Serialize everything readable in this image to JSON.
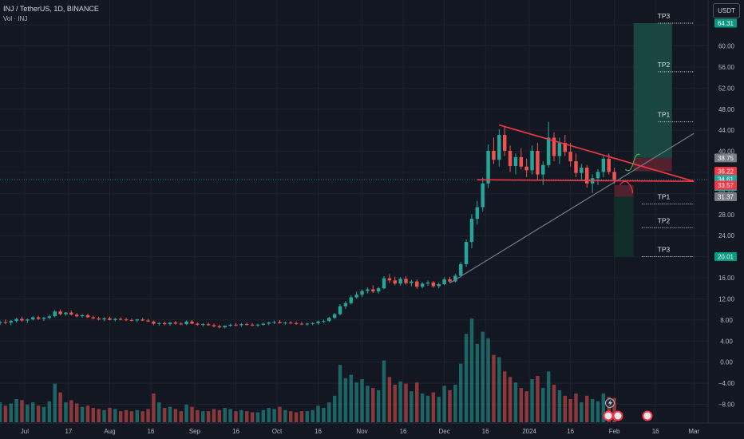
{
  "header": {
    "symbol_line": "INJ / TetherUS, 1D, BINANCE",
    "volume_line": "Vol · INJ",
    "currency_button": "USDT"
  },
  "colors": {
    "background": "#131722",
    "up": "#26a69a",
    "down": "#ef5350",
    "triangle": "#f23645",
    "support": "#787b86",
    "long_zone": "#1b4f45",
    "stop_zone": "#5d2330",
    "short_zone": "#12302c"
  },
  "chart_data": {
    "type": "candlestick",
    "y_axis_ticks": [
      "64.00",
      "60.00",
      "56.00",
      "52.00",
      "48.00",
      "44.00",
      "40.00",
      "36.00",
      "32.00",
      "28.00",
      "24.00",
      "20.00",
      "16.00",
      "12.00",
      "8.00",
      "4.00",
      "0.00",
      "−4.00",
      "−8.00"
    ],
    "y_range": [
      -10.5,
      67.5
    ],
    "x_axis_labels": [
      "Jul",
      "17",
      "Aug",
      "16",
      "Sep",
      "16",
      "Oct",
      "16",
      "Nov",
      "16",
      "Dec",
      "16",
      "2024",
      "16",
      "Feb",
      "16",
      "Mar"
    ],
    "x_label_dates": [
      "2023-07-01",
      "2023-07-17",
      "2023-08-01",
      "2023-08-16",
      "2023-09-01",
      "2023-09-16",
      "2023-10-01",
      "2023-10-16",
      "2023-11-01",
      "2023-11-16",
      "2023-12-01",
      "2023-12-16",
      "2024-01-01",
      "2024-01-16",
      "2024-02-01",
      "2024-02-16",
      "2024-03-01"
    ],
    "x_range": [
      "2023-06-22",
      "2024-03-05"
    ],
    "price_tags": [
      {
        "value": 64.31,
        "label": "64.31",
        "color": "#089981"
      },
      {
        "value": 38.75,
        "label": "38.75",
        "color": "#787b86"
      },
      {
        "value": 36.22,
        "label": "36.22",
        "color": "#f23645"
      },
      {
        "value": 34.61,
        "label": "34.61",
        "sublabel": "08:44:40",
        "color": "#26a69a"
      },
      {
        "value": 33.57,
        "label": "33.57",
        "color": "#f23645"
      },
      {
        "value": 31.37,
        "label": "31.37",
        "color": "#787b86"
      },
      {
        "value": 20.01,
        "label": "20.01",
        "color": "#089981"
      }
    ],
    "current_price": 34.61,
    "targets_long": [
      {
        "label": "TP3",
        "value": 64.31
      },
      {
        "label": "TP2",
        "value": 55.1
      },
      {
        "label": "TP1",
        "value": 45.6
      }
    ],
    "targets_short": [
      {
        "label": "TP1",
        "value": 30.0
      },
      {
        "label": "TP2",
        "value": 25.5
      },
      {
        "label": "TP3",
        "value": 20.01
      }
    ],
    "long_position": {
      "from": "2024-02-08",
      "to": "2024-02-22",
      "entry": 38.75,
      "target": 64.31,
      "stop": 36.22
    },
    "short_position": {
      "from": "2024-02-01",
      "to": "2024-02-08",
      "entry": 31.37,
      "target": 20.01,
      "stop": 33.57
    },
    "triangle_top": [
      [
        "2023-12-21",
        45.0
      ],
      [
        "2024-03-01",
        34.3
      ]
    ],
    "triangle_base": [
      [
        "2023-12-13",
        34.6
      ],
      [
        "2024-03-01",
        34.3
      ]
    ],
    "support_line": [
      [
        "2023-12-03",
        15.0
      ],
      [
        "2024-03-01",
        43.4
      ]
    ],
    "candles": [
      [
        "2023-06-22",
        7.4,
        7.9,
        7.0,
        7.6,
        1.8
      ],
      [
        "2023-06-24",
        7.6,
        8.1,
        7.2,
        7.5,
        1.5
      ],
      [
        "2023-06-26",
        7.5,
        8.0,
        7.0,
        7.8,
        1.7
      ],
      [
        "2023-06-28",
        7.8,
        8.4,
        7.5,
        8.2,
        2.1
      ],
      [
        "2023-06-30",
        8.2,
        8.6,
        7.7,
        7.9,
        2.0
      ],
      [
        "2023-07-02",
        7.9,
        8.3,
        7.4,
        8.1,
        1.6
      ],
      [
        "2023-07-04",
        8.1,
        8.7,
        7.9,
        8.5,
        1.8
      ],
      [
        "2023-07-06",
        8.5,
        8.8,
        8.0,
        8.2,
        1.5
      ],
      [
        "2023-07-08",
        8.2,
        8.6,
        7.8,
        8.4,
        1.4
      ],
      [
        "2023-07-10",
        8.4,
        9.0,
        8.1,
        8.7,
        1.9
      ],
      [
        "2023-07-12",
        8.7,
        9.9,
        8.5,
        9.6,
        3.5
      ],
      [
        "2023-07-14",
        9.6,
        10.0,
        8.9,
        9.1,
        2.7
      ],
      [
        "2023-07-16",
        9.1,
        9.5,
        8.8,
        9.4,
        1.8
      ],
      [
        "2023-07-18",
        9.4,
        9.8,
        8.9,
        9.0,
        2.0
      ],
      [
        "2023-07-20",
        9.0,
        9.3,
        8.5,
        8.7,
        1.7
      ],
      [
        "2023-07-22",
        8.7,
        9.1,
        8.4,
        8.9,
        1.4
      ],
      [
        "2023-07-24",
        8.9,
        9.2,
        8.4,
        8.5,
        1.5
      ],
      [
        "2023-07-26",
        8.5,
        8.8,
        8.1,
        8.3,
        1.3
      ],
      [
        "2023-07-28",
        8.3,
        8.6,
        7.9,
        8.1,
        1.2
      ],
      [
        "2023-07-30",
        8.1,
        8.5,
        7.8,
        8.3,
        1.1
      ],
      [
        "2023-08-01",
        8.3,
        8.6,
        7.9,
        8.0,
        1.3
      ],
      [
        "2023-08-03",
        8.0,
        8.4,
        7.7,
        8.2,
        1.2
      ],
      [
        "2023-08-05",
        8.2,
        8.5,
        7.9,
        8.1,
        1.0
      ],
      [
        "2023-08-07",
        8.1,
        8.4,
        7.8,
        8.0,
        1.1
      ],
      [
        "2023-08-09",
        8.0,
        8.3,
        7.7,
        7.9,
        1.0
      ],
      [
        "2023-08-11",
        7.9,
        8.2,
        7.6,
        8.1,
        1.1
      ],
      [
        "2023-08-13",
        8.1,
        8.4,
        7.8,
        7.9,
        1.0
      ],
      [
        "2023-08-15",
        7.9,
        8.2,
        7.6,
        7.7,
        1.2
      ],
      [
        "2023-08-17",
        7.7,
        7.9,
        7.0,
        7.3,
        2.6
      ],
      [
        "2023-08-19",
        7.3,
        7.6,
        6.9,
        7.4,
        1.8
      ],
      [
        "2023-08-21",
        7.4,
        7.7,
        7.0,
        7.2,
        1.3
      ],
      [
        "2023-08-23",
        7.2,
        7.6,
        6.9,
        7.5,
        1.4
      ],
      [
        "2023-08-25",
        7.5,
        7.8,
        7.1,
        7.3,
        1.2
      ],
      [
        "2023-08-27",
        7.3,
        7.6,
        7.0,
        7.2,
        1.0
      ],
      [
        "2023-08-29",
        7.2,
        7.9,
        7.0,
        7.7,
        1.6
      ],
      [
        "2023-08-31",
        7.7,
        8.0,
        7.2,
        7.3,
        1.4
      ],
      [
        "2023-09-02",
        7.3,
        7.5,
        6.9,
        7.1,
        1.1
      ],
      [
        "2023-09-04",
        7.1,
        7.4,
        6.8,
        7.2,
        1.0
      ],
      [
        "2023-09-06",
        7.2,
        7.5,
        6.9,
        7.0,
        1.0
      ],
      [
        "2023-09-08",
        7.0,
        7.3,
        6.6,
        6.8,
        1.2
      ],
      [
        "2023-09-10",
        6.8,
        7.1,
        6.4,
        6.6,
        1.1
      ],
      [
        "2023-09-12",
        6.6,
        7.0,
        6.4,
        6.9,
        1.3
      ],
      [
        "2023-09-14",
        6.9,
        7.3,
        6.7,
        7.1,
        1.2
      ],
      [
        "2023-09-16",
        7.1,
        7.4,
        6.8,
        7.0,
        1.0
      ],
      [
        "2023-09-18",
        7.0,
        7.4,
        6.7,
        7.2,
        1.1
      ],
      [
        "2023-09-20",
        7.2,
        7.5,
        6.9,
        7.1,
        1.0
      ],
      [
        "2023-09-22",
        7.1,
        7.4,
        6.8,
        7.0,
        0.9
      ],
      [
        "2023-09-24",
        7.0,
        7.3,
        6.7,
        7.1,
        0.9
      ],
      [
        "2023-09-26",
        7.1,
        7.5,
        6.9,
        7.3,
        1.1
      ],
      [
        "2023-09-28",
        7.3,
        7.7,
        7.0,
        7.5,
        1.3
      ],
      [
        "2023-09-30",
        7.5,
        7.9,
        7.2,
        7.6,
        1.2
      ],
      [
        "2023-10-02",
        7.6,
        8.0,
        7.3,
        7.4,
        1.4
      ],
      [
        "2023-10-04",
        7.4,
        7.7,
        7.1,
        7.5,
        1.1
      ],
      [
        "2023-10-06",
        7.5,
        7.8,
        7.2,
        7.4,
        1.0
      ],
      [
        "2023-10-08",
        7.4,
        7.7,
        7.1,
        7.3,
        0.9
      ],
      [
        "2023-10-10",
        7.3,
        7.6,
        7.0,
        7.2,
        1.0
      ],
      [
        "2023-10-12",
        7.2,
        7.5,
        6.9,
        7.3,
        1.0
      ],
      [
        "2023-10-14",
        7.3,
        7.6,
        7.0,
        7.4,
        1.1
      ],
      [
        "2023-10-16",
        7.4,
        7.9,
        7.1,
        7.7,
        1.5
      ],
      [
        "2023-10-18",
        7.7,
        8.1,
        7.4,
        7.8,
        1.3
      ],
      [
        "2023-10-20",
        7.8,
        8.6,
        7.6,
        8.4,
        1.8
      ],
      [
        "2023-10-22",
        8.4,
        9.3,
        8.2,
        9.1,
        2.4
      ],
      [
        "2023-10-24",
        9.1,
        11.0,
        8.9,
        10.6,
        5.2
      ],
      [
        "2023-10-26",
        10.6,
        11.6,
        10.1,
        11.2,
        4.0
      ],
      [
        "2023-10-28",
        11.2,
        12.7,
        10.9,
        12.3,
        4.3
      ],
      [
        "2023-10-30",
        12.3,
        13.4,
        12.0,
        12.8,
        3.6
      ],
      [
        "2023-11-01",
        12.8,
        13.8,
        12.3,
        13.5,
        3.9
      ],
      [
        "2023-11-03",
        13.5,
        14.2,
        13.0,
        13.8,
        3.3
      ],
      [
        "2023-11-05",
        13.8,
        14.6,
        13.1,
        13.4,
        3.1
      ],
      [
        "2023-11-07",
        13.4,
        14.3,
        13.0,
        14.0,
        2.9
      ],
      [
        "2023-11-09",
        14.0,
        16.3,
        13.8,
        15.9,
        5.6
      ],
      [
        "2023-11-11",
        15.9,
        16.7,
        15.0,
        15.5,
        4.1
      ],
      [
        "2023-11-13",
        15.5,
        16.2,
        14.6,
        14.9,
        3.4
      ],
      [
        "2023-11-15",
        14.9,
        16.1,
        14.5,
        15.8,
        3.7
      ],
      [
        "2023-11-17",
        15.8,
        16.3,
        14.7,
        15.0,
        3.5
      ],
      [
        "2023-11-19",
        15.0,
        15.6,
        14.4,
        15.3,
        2.8
      ],
      [
        "2023-11-21",
        15.3,
        15.7,
        13.9,
        14.3,
        3.6
      ],
      [
        "2023-11-23",
        14.3,
        15.2,
        14.0,
        14.9,
        2.6
      ],
      [
        "2023-11-25",
        14.9,
        15.5,
        14.5,
        15.1,
        2.4
      ],
      [
        "2023-11-27",
        15.1,
        15.4,
        14.1,
        14.4,
        2.7
      ],
      [
        "2023-11-29",
        14.4,
        15.1,
        14.0,
        14.8,
        2.3
      ],
      [
        "2023-12-01",
        14.8,
        16.1,
        14.6,
        15.7,
        3.3
      ],
      [
        "2023-12-03",
        15.7,
        16.2,
        15.0,
        15.3,
        2.9
      ],
      [
        "2023-12-05",
        15.3,
        16.8,
        15.1,
        16.4,
        3.4
      ],
      [
        "2023-12-07",
        16.4,
        19.0,
        16.1,
        18.6,
        5.3
      ],
      [
        "2023-12-09",
        18.6,
        23.3,
        18.1,
        22.8,
        8.0
      ],
      [
        "2023-12-11",
        22.8,
        28.1,
        21.6,
        27.2,
        9.4
      ],
      [
        "2023-12-13",
        27.2,
        30.6,
        26.1,
        29.4,
        7.1
      ],
      [
        "2023-12-15",
        29.4,
        35.0,
        28.6,
        33.9,
        8.2
      ],
      [
        "2023-12-17",
        33.9,
        41.3,
        33.0,
        40.1,
        7.6
      ],
      [
        "2023-12-19",
        40.1,
        42.6,
        37.6,
        38.4,
        6.1
      ],
      [
        "2023-12-21",
        38.4,
        44.2,
        37.1,
        43.1,
        5.9
      ],
      [
        "2023-12-23",
        43.1,
        44.7,
        39.1,
        40.1,
        4.6
      ],
      [
        "2023-12-25",
        40.1,
        41.1,
        36.1,
        37.2,
        4.1
      ],
      [
        "2023-12-27",
        37.2,
        39.6,
        35.6,
        38.9,
        3.6
      ],
      [
        "2023-12-29",
        38.9,
        40.6,
        36.6,
        37.1,
        3.1
      ],
      [
        "2023-12-31",
        37.1,
        38.6,
        35.1,
        36.4,
        2.8
      ],
      [
        "2024-01-02",
        36.4,
        41.1,
        35.6,
        40.1,
        3.9
      ],
      [
        "2024-01-04",
        40.1,
        41.6,
        34.6,
        35.6,
        4.2
      ],
      [
        "2024-01-06",
        35.6,
        38.1,
        33.6,
        37.4,
        3.1
      ],
      [
        "2024-01-08",
        37.4,
        45.6,
        36.9,
        42.6,
        4.6
      ],
      [
        "2024-01-10",
        42.6,
        43.6,
        38.1,
        39.1,
        3.4
      ],
      [
        "2024-01-12",
        39.1,
        42.6,
        37.6,
        41.6,
        2.9
      ],
      [
        "2024-01-14",
        41.6,
        43.1,
        39.1,
        39.9,
        2.4
      ],
      [
        "2024-01-16",
        39.9,
        41.6,
        37.1,
        38.1,
        2.1
      ],
      [
        "2024-01-18",
        38.1,
        39.6,
        35.1,
        35.9,
        2.6
      ],
      [
        "2024-01-20",
        35.9,
        37.6,
        34.6,
        36.9,
        1.8
      ],
      [
        "2024-01-22",
        36.9,
        37.4,
        33.1,
        33.9,
        2.4
      ],
      [
        "2024-01-24",
        33.9,
        35.6,
        32.1,
        34.9,
        2.1
      ],
      [
        "2024-01-26",
        34.9,
        36.6,
        33.6,
        36.1,
        1.9
      ],
      [
        "2024-01-28",
        36.1,
        39.1,
        35.1,
        38.6,
        2.6
      ],
      [
        "2024-01-30",
        38.6,
        39.6,
        35.6,
        36.1,
        2.3
      ],
      [
        "2024-02-01",
        36.1,
        36.9,
        33.8,
        34.6,
        2.2
      ]
    ]
  }
}
